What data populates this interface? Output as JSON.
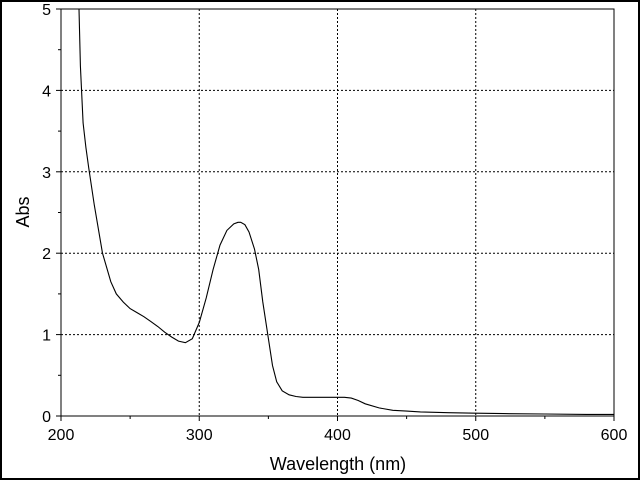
{
  "chart_data": {
    "type": "line",
    "title": "",
    "xlabel": "Wavelength (nm)",
    "ylabel": "Abs",
    "xlim": [
      200,
      600
    ],
    "ylim": [
      0,
      5
    ],
    "xticks": [
      200,
      300,
      400,
      500,
      600
    ],
    "yticks": [
      0,
      1,
      2,
      3,
      4,
      5
    ],
    "xtick_labels": [
      "200",
      "300",
      "400",
      "500",
      "600"
    ],
    "ytick_labels": [
      "0",
      "1",
      "2",
      "3",
      "4",
      "5"
    ],
    "grid": true,
    "grid_style": "dotted",
    "line_color": "#000000",
    "series": [
      {
        "x": [
          213,
          214,
          216,
          218,
          220,
          224,
          230,
          236,
          240,
          245,
          250,
          255,
          260,
          265,
          270,
          275,
          280,
          285,
          290,
          295,
          300,
          305,
          310,
          315,
          320,
          325,
          328,
          330,
          333,
          336,
          340,
          343,
          346,
          350,
          353,
          356,
          360,
          365,
          370,
          375,
          380,
          390,
          400,
          405,
          410,
          415,
          420,
          430,
          440,
          450,
          460,
          480,
          500,
          520,
          550,
          580,
          600
        ],
        "y": [
          5.0,
          4.3,
          3.6,
          3.3,
          3.05,
          2.6,
          2.0,
          1.65,
          1.5,
          1.4,
          1.32,
          1.27,
          1.22,
          1.16,
          1.1,
          1.03,
          0.97,
          0.92,
          0.9,
          0.95,
          1.15,
          1.45,
          1.8,
          2.1,
          2.28,
          2.36,
          2.38,
          2.38,
          2.35,
          2.26,
          2.05,
          1.8,
          1.4,
          0.95,
          0.62,
          0.42,
          0.31,
          0.26,
          0.24,
          0.23,
          0.23,
          0.23,
          0.23,
          0.23,
          0.22,
          0.19,
          0.15,
          0.1,
          0.07,
          0.06,
          0.05,
          0.04,
          0.035,
          0.03,
          0.025,
          0.02,
          0.02
        ]
      }
    ]
  }
}
